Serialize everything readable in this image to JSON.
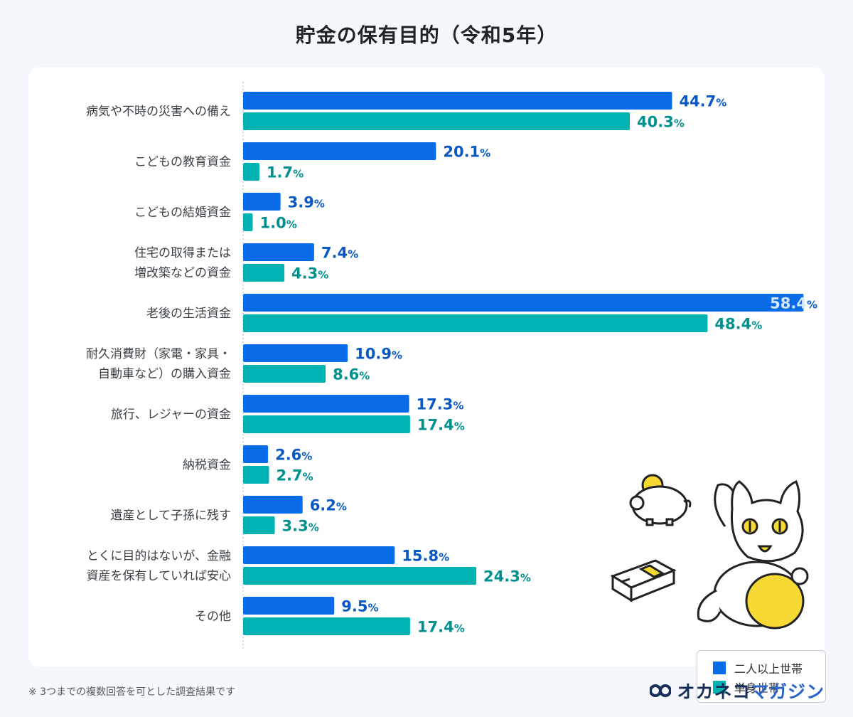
{
  "title": "貯金の保有目的（令和5年）",
  "footnote": "※ 3つまでの複数回答を可とした調査結果です",
  "brand": {
    "part1": "オカネコ",
    "part2": "マガジン"
  },
  "colors": {
    "series1": "#0a6ce8",
    "series2": "#00b2b2",
    "label1": "#0a58c2",
    "label2": "#00918f"
  },
  "chart_data": {
    "type": "bar",
    "orientation": "horizontal",
    "unit": "%",
    "categories": [
      [
        "病気や不時の災害への備え"
      ],
      [
        "こどもの教育資金"
      ],
      [
        "こどもの結婚資金"
      ],
      [
        "住宅の取得または",
        "増改築などの資金"
      ],
      [
        "老後の生活資金"
      ],
      [
        "耐久消費財（家電・家具・",
        "自動車など）の購入資金"
      ],
      [
        "旅行、レジャーの資金"
      ],
      [
        "納税資金"
      ],
      [
        "遺産として子孫に残す"
      ],
      [
        "とくに目的はないが、金融",
        "資産を保有していれば安心"
      ],
      [
        "その他"
      ]
    ],
    "series": [
      {
        "name": "二人以上世帯",
        "values": [
          44.7,
          20.1,
          3.9,
          7.4,
          58.4,
          10.9,
          17.3,
          2.6,
          6.2,
          15.8,
          9.5
        ]
      },
      {
        "name": "単身世帯",
        "values": [
          40.3,
          1.7,
          1.0,
          4.3,
          48.4,
          8.6,
          17.4,
          2.7,
          3.3,
          24.3,
          17.4
        ]
      }
    ],
    "xlim": [
      0,
      60
    ],
    "grid": false,
    "legend_position": "bottom-right"
  }
}
